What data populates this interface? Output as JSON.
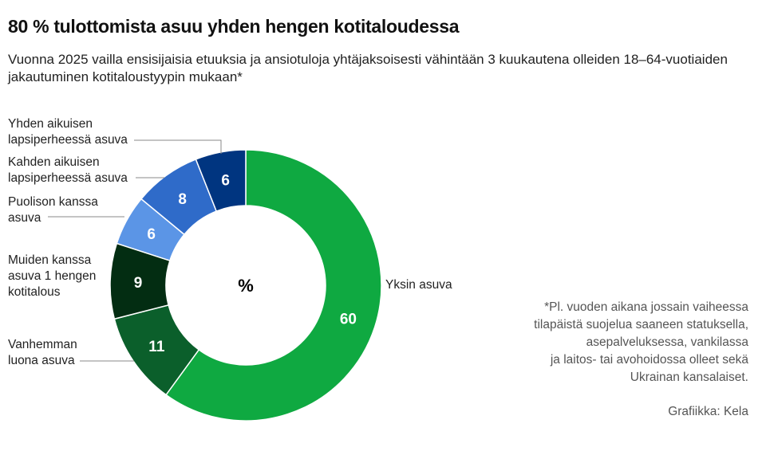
{
  "title": "80 % tulottomista asuu yhden hengen kotitaloudessa",
  "subtitle": "Vuonna 2025 vailla ensisijaisia etuuksia ja ansiotuloja yhtäjaksoisesti vähintään 3 kuukautena olleiden 18–64-vuotiaiden jakautuminen kotitaloustyypin mukaan*",
  "note": "*Pl. vuoden aikana jossain vaiheessa\ntilapäistä suojelua saaneen statuksella,\nasepalveluksessa, vankilassa\nja laitos- tai avohoidossa olleet sekä\nUkrainan kansalaiset.",
  "credit": "Grafiikka: Kela",
  "chart_data": {
    "type": "pie",
    "donut": true,
    "center_label": "%",
    "unit": "%",
    "slices": [
      {
        "label": "Yksin asuva",
        "value": 60,
        "color": "#0fa941"
      },
      {
        "label": "Vanhemman luona asuva",
        "value": 11,
        "color": "#0b5f2b"
      },
      {
        "label": "Muiden kanssa asuva 1 hengen kotitalous",
        "value": 9,
        "color": "#032d12"
      },
      {
        "label": "Puolison kanssa asuva",
        "value": 6,
        "color": "#5b95e6"
      },
      {
        "label": "Kahden aikuisen lapsiperheessä asuva",
        "value": 8,
        "color": "#2f6bc9"
      },
      {
        "label": "Yhden aikuisen lapsiperheessä asuva",
        "value": 6,
        "color": "#003580"
      }
    ]
  }
}
